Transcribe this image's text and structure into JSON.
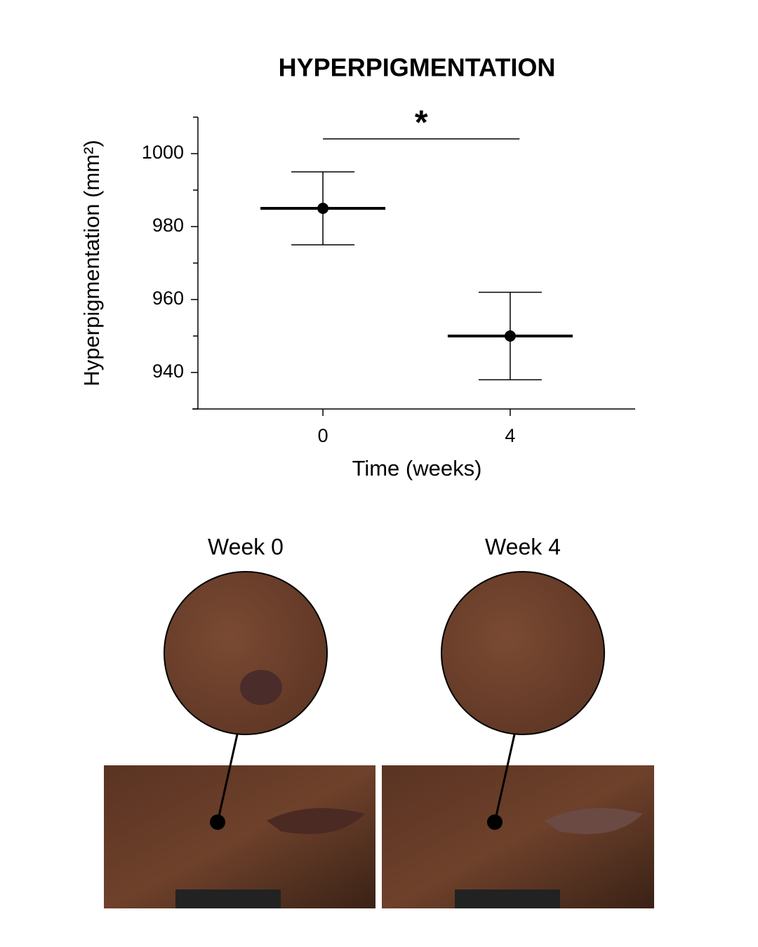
{
  "chart_data": {
    "type": "errorbar",
    "title": "HYPERPIGMENTATION",
    "x_label": "Time (weeks)",
    "y_label": "Hyperpigmentation (mm²)",
    "x": [
      0,
      4
    ],
    "series": [
      {
        "color": "#000000",
        "values": [
          985,
          950
        ],
        "errors": [
          10,
          12
        ]
      }
    ],
    "xlim": [
      -2.67,
      6.67
    ],
    "ylim": [
      930,
      1010
    ],
    "xticks": [
      0,
      4
    ],
    "yticks": [
      940,
      960,
      980,
      1000
    ],
    "yminorticks": [
      930,
      950,
      970,
      990,
      1010
    ],
    "annotation": {
      "text": "*",
      "x": [
        0,
        4.2
      ]
    }
  },
  "photos": {
    "labels": [
      "Week 0",
      "Week 4"
    ]
  }
}
